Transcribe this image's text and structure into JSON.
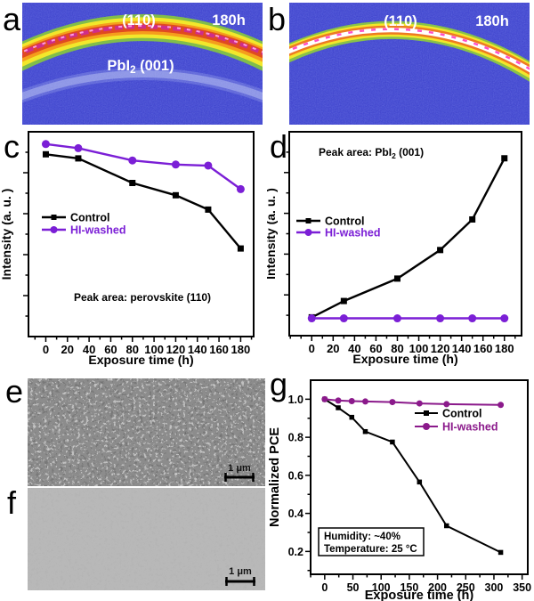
{
  "panels": {
    "a": "a",
    "b": "b",
    "c": "c",
    "d": "d",
    "e": "e",
    "f": "f",
    "g": "g"
  },
  "panel_a": {
    "peak_label": "(110)",
    "time_label": "180h",
    "ring_label": [
      {
        "t": "PbI"
      },
      {
        "t": "2",
        "sub": true
      },
      {
        "t": " (001)"
      }
    ]
  },
  "panel_b": {
    "peak_label": "(110)",
    "time_label": "180h"
  },
  "panel_e": {
    "scale_label": "1 μm"
  },
  "panel_f": {
    "scale_label": "1 μm"
  },
  "colors": {
    "control": "#000000",
    "hi_washed_violet": "#7b1fd6",
    "hi_washed_magenta": "#8b1a8b",
    "xrd_background": "#3b40d4"
  },
  "chart_data": [
    {
      "id": "c",
      "type": "line",
      "title": "",
      "xlabel": "Exposure time (h)",
      "ylabel": "Intensity (a. u. )",
      "xlim": [
        -16,
        192
      ],
      "ylim": [
        0,
        1
      ],
      "xticks": [
        0,
        20,
        40,
        60,
        80,
        100,
        120,
        140,
        160,
        180
      ],
      "xminor": 10,
      "yminor": 0.1,
      "ytick_labels": false,
      "legend_position": "center-left",
      "x": [
        0,
        30,
        80,
        120,
        150,
        180
      ],
      "series": [
        {
          "name": "Control",
          "color": "#000000",
          "marker": "square",
          "values": [
            0.89,
            0.87,
            0.75,
            0.69,
            0.62,
            0.43
          ]
        },
        {
          "name": "HI-washed",
          "color": "#7b1fd6",
          "marker": "circle",
          "values": [
            0.94,
            0.92,
            0.86,
            0.84,
            0.835,
            0.72
          ]
        }
      ],
      "annotations": [
        {
          "segments": [
            {
              "t": "Peak area: perovskite  (110)"
            }
          ]
        }
      ]
    },
    {
      "id": "d",
      "type": "line",
      "title": "",
      "xlabel": "Exposure time (h)",
      "ylabel": "Intensity (a. u. )",
      "xlim": [
        -21,
        196
      ],
      "ylim": [
        0,
        1
      ],
      "xticks": [
        0,
        20,
        40,
        60,
        80,
        100,
        120,
        140,
        160,
        180
      ],
      "xminor": 10,
      "yminor": 0.1,
      "ytick_labels": false,
      "legend_position": "center-left",
      "x": [
        0,
        30,
        80,
        120,
        150,
        180
      ],
      "series": [
        {
          "name": "Control",
          "color": "#000000",
          "marker": "square",
          "values": [
            0.09,
            0.17,
            0.28,
            0.42,
            0.57,
            0.87
          ]
        },
        {
          "name": "HI-washed",
          "color": "#7b1fd6",
          "marker": "circle",
          "values": [
            0.085,
            0.085,
            0.085,
            0.085,
            0.085,
            0.085
          ]
        }
      ],
      "annotations": [
        {
          "segments": [
            {
              "t": "Peak area: PbI"
            },
            {
              "t": "2",
              "sub": true
            },
            {
              "t": "  (001)"
            }
          ]
        }
      ]
    },
    {
      "id": "g",
      "type": "line",
      "title": "",
      "xlabel": "Exposure time (h)",
      "ylabel": "Normalized PCE",
      "xlim": [
        -25,
        360
      ],
      "ylim": [
        0.08,
        1.1
      ],
      "xticks": [
        0,
        50,
        100,
        150,
        200,
        250,
        300,
        350
      ],
      "xminor": 25,
      "yticks": [
        0.2,
        0.4,
        0.6,
        0.8,
        1.0
      ],
      "yminor": 0.1,
      "ytick_decimals": 1,
      "legend_position": "upper-right",
      "x": [
        0,
        24,
        48,
        72,
        120,
        168,
        216,
        312
      ],
      "series": [
        {
          "name": "Control",
          "color": "#000000",
          "marker": "square",
          "values": [
            1.0,
            0.955,
            0.905,
            0.83,
            0.775,
            0.565,
            0.335,
            0.195
          ]
        },
        {
          "name": "HI-washed",
          "color": "#8b1a8b",
          "marker": "circle",
          "values": [
            1.0,
            0.993,
            0.99,
            0.988,
            0.985,
            0.978,
            0.974,
            0.97
          ]
        }
      ],
      "annotations": [
        {
          "box": true,
          "lines": [
            [
              {
                "t": "Humidity: ~40%"
              }
            ],
            [
              {
                "t": "Temperature: 25 °C"
              }
            ]
          ]
        }
      ]
    }
  ]
}
